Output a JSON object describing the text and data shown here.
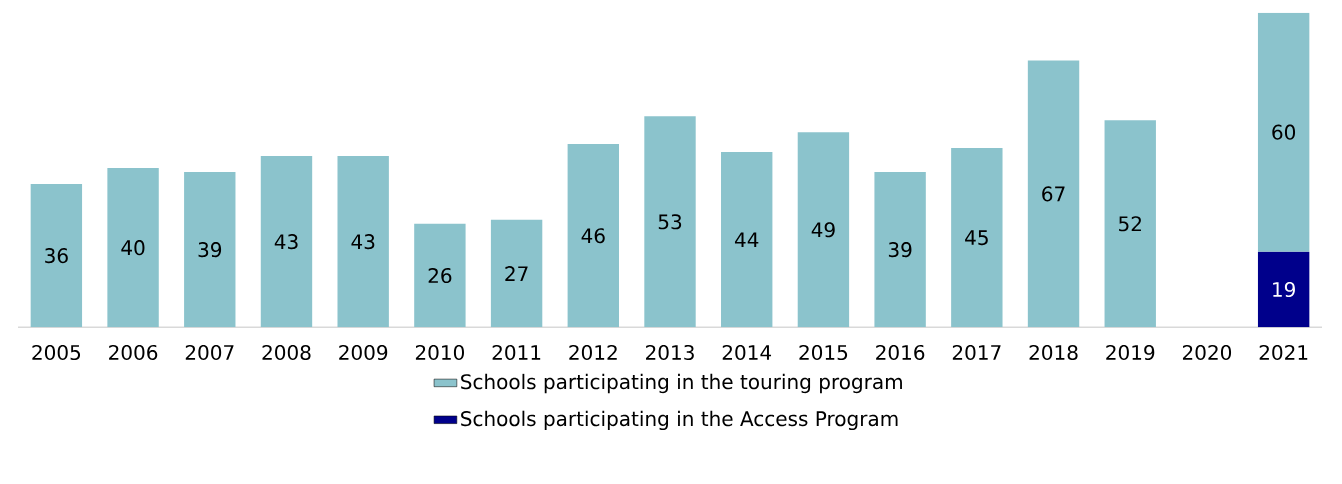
{
  "chart_data": {
    "type": "bar",
    "stacked": true,
    "data_labels": true,
    "legend": "bottom",
    "grid": false,
    "categories": [
      "2005",
      "2006",
      "2007",
      "2008",
      "2009",
      "2010",
      "2011",
      "2012",
      "2013",
      "2014",
      "2015",
      "2016",
      "2017",
      "2018",
      "2019",
      "2020",
      "2021"
    ],
    "series": [
      {
        "name": "Schools participating in the Access Program",
        "color": "#00008b",
        "values": [
          null,
          null,
          null,
          null,
          null,
          null,
          null,
          null,
          null,
          null,
          null,
          null,
          null,
          null,
          null,
          null,
          19
        ]
      },
      {
        "name": "Schools participating in the touring program",
        "color": "#8bc3cc",
        "values": [
          36,
          40,
          39,
          43,
          43,
          26,
          27,
          46,
          53,
          44,
          49,
          39,
          45,
          67,
          52,
          null,
          60
        ]
      }
    ]
  }
}
